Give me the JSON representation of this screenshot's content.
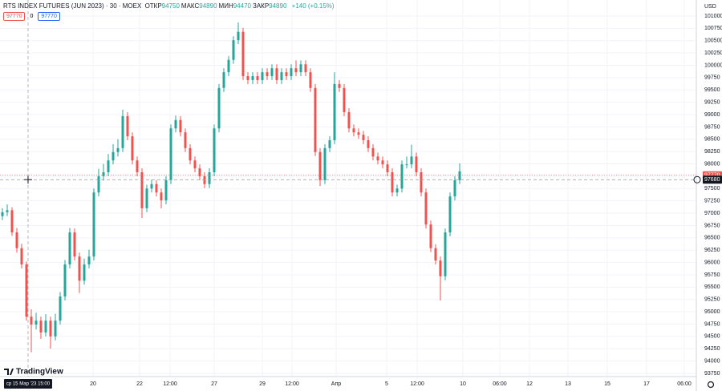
{
  "chart_data": {
    "type": "candlestick",
    "title": "RTS INDEX FUTURES (JUN 2023) · 30 · MOEX",
    "legend": [
      {
        "label": "ОТКР",
        "value": 94750
      },
      {
        "label": "МАКС",
        "value": 94890
      },
      {
        "label": "МИН",
        "value": 94470
      },
      {
        "label": "ЗАКР",
        "value": 94890
      }
    ],
    "change": "+140 (+0.15%)",
    "quote_boxes": [
      97770,
      0,
      97770
    ],
    "currency": "USD",
    "last_price": 97770,
    "crosshair": {
      "x": 5.83,
      "price": 97680,
      "label": "ср 15 Мар '23 15:00"
    },
    "brand": "TradingView",
    "up_color": "#26a69a",
    "down_color": "#ef5350",
    "grid": true,
    "ylim": [
      93685,
      101325
    ],
    "yticks": [
      101000,
      100750,
      100500,
      100250,
      100000,
      99750,
      99500,
      99250,
      99000,
      98750,
      98500,
      98250,
      98000,
      97750,
      97500,
      97250,
      97000,
      96750,
      96500,
      96250,
      96000,
      95750,
      95500,
      95250,
      95000,
      94750,
      94500,
      94250,
      94000,
      93750
    ],
    "xlim": [
      0,
      144.67
    ],
    "xticks": [
      {
        "value": 19.33,
        "label": "20"
      },
      {
        "value": 29,
        "label": "22"
      },
      {
        "value": 35.33,
        "label": "12:00"
      },
      {
        "value": 44.5,
        "label": "27"
      },
      {
        "value": 54.5,
        "label": "29"
      },
      {
        "value": 60.67,
        "label": "12:00"
      },
      {
        "value": 69.83,
        "label": "Апр"
      },
      {
        "value": 80.33,
        "label": "5"
      },
      {
        "value": 86.67,
        "label": "12:00"
      },
      {
        "value": 96.17,
        "label": "10"
      },
      {
        "value": 103.83,
        "label": "06:00"
      },
      {
        "value": 110,
        "label": "12"
      },
      {
        "value": 118,
        "label": "13"
      },
      {
        "value": 126.17,
        "label": "15"
      },
      {
        "value": 134.33,
        "label": "17"
      },
      {
        "value": 142.17,
        "label": "06:00"
      }
    ],
    "ohlc": [
      [
        96940,
        97100,
        96860,
        97020
      ],
      [
        97020,
        97180,
        96940,
        97060
      ],
      [
        97060,
        97120,
        96540,
        96610
      ],
      [
        96610,
        96700,
        96200,
        96290
      ],
      [
        96290,
        96380,
        95880,
        95960
      ],
      [
        95960,
        96020,
        94820,
        94900
      ],
      [
        94900,
        95050,
        94180,
        94740
      ],
      [
        94740,
        94980,
        94640,
        94820
      ],
      [
        94820,
        94900,
        94450,
        94580
      ],
      [
        94580,
        94950,
        94500,
        94820
      ],
      [
        94820,
        94900,
        94250,
        94500
      ],
      [
        94500,
        94960,
        94420,
        94820
      ],
      [
        94820,
        95400,
        94740,
        95310
      ],
      [
        95310,
        96050,
        95230,
        95960
      ],
      [
        95960,
        96700,
        95880,
        96610
      ],
      [
        96610,
        96690,
        96040,
        96120
      ],
      [
        96120,
        96200,
        95380,
        95630
      ],
      [
        95630,
        96080,
        95550,
        95960
      ],
      [
        95960,
        96260,
        95880,
        96120
      ],
      [
        96120,
        97500,
        96040,
        97420
      ],
      [
        97420,
        97900,
        97340,
        97750
      ],
      [
        97750,
        98000,
        97660,
        97830
      ],
      [
        97830,
        98200,
        97750,
        98070
      ],
      [
        98070,
        98400,
        97990,
        98240
      ],
      [
        98240,
        98500,
        98150,
        98320
      ],
      [
        98320,
        99100,
        98240,
        98970
      ],
      [
        98970,
        99050,
        98480,
        98560
      ],
      [
        98560,
        98640,
        97990,
        98070
      ],
      [
        98070,
        98150,
        97750,
        97830
      ],
      [
        97830,
        97910,
        96900,
        97100
      ],
      [
        97100,
        97580,
        97020,
        97500
      ],
      [
        97500,
        97680,
        97420,
        97590
      ],
      [
        97590,
        97670,
        97340,
        97420
      ],
      [
        97420,
        97500,
        97100,
        97260
      ],
      [
        97260,
        97750,
        97180,
        97670
      ],
      [
        97670,
        98800,
        97590,
        98720
      ],
      [
        98720,
        98980,
        98640,
        98890
      ],
      [
        98890,
        98970,
        98560,
        98640
      ],
      [
        98640,
        98720,
        98240,
        98320
      ],
      [
        98320,
        98400,
        97990,
        98070
      ],
      [
        98070,
        98150,
        97830,
        97910
      ],
      [
        97910,
        97990,
        97670,
        97750
      ],
      [
        97750,
        97830,
        97510,
        97590
      ],
      [
        97590,
        97910,
        97510,
        97830
      ],
      [
        97830,
        98800,
        97750,
        98720
      ],
      [
        98720,
        99620,
        98640,
        99540
      ],
      [
        99540,
        99940,
        99460,
        99860
      ],
      [
        99860,
        100190,
        99780,
        100110
      ],
      [
        100110,
        100590,
        100030,
        100510
      ],
      [
        100510,
        100870,
        100430,
        100680
      ],
      [
        100680,
        100760,
        99700,
        99780
      ],
      [
        99780,
        99860,
        99620,
        99700
      ],
      [
        99700,
        99860,
        99620,
        99780
      ],
      [
        99780,
        99860,
        99620,
        99700
      ],
      [
        99700,
        99940,
        99620,
        99860
      ],
      [
        99860,
        99940,
        99700,
        99780
      ],
      [
        99780,
        100020,
        99700,
        99940
      ],
      [
        99940,
        100020,
        99620,
        99700
      ],
      [
        99700,
        99940,
        99620,
        99860
      ],
      [
        99860,
        99940,
        99700,
        99780
      ],
      [
        99780,
        100020,
        99700,
        99940
      ],
      [
        99940,
        100100,
        99780,
        99860
      ],
      [
        99860,
        100100,
        99780,
        100020
      ],
      [
        100020,
        100100,
        99780,
        99860
      ],
      [
        99860,
        99940,
        99460,
        99540
      ],
      [
        99540,
        99620,
        98160,
        98240
      ],
      [
        98240,
        98320,
        97550,
        97670
      ],
      [
        97670,
        98400,
        97590,
        98320
      ],
      [
        98320,
        98560,
        98240,
        98480
      ],
      [
        98480,
        99860,
        98400,
        99620
      ],
      [
        99620,
        99700,
        99460,
        99540
      ],
      [
        99540,
        99620,
        98970,
        99050
      ],
      [
        99050,
        99130,
        98640,
        98720
      ],
      [
        98720,
        98800,
        98560,
        98640
      ],
      [
        98640,
        98720,
        98510,
        98590
      ],
      [
        98590,
        98670,
        98400,
        98480
      ],
      [
        98480,
        98560,
        98240,
        98320
      ],
      [
        98320,
        98400,
        98070,
        98150
      ],
      [
        98150,
        98230,
        97990,
        98070
      ],
      [
        98070,
        98150,
        97910,
        97990
      ],
      [
        97990,
        98070,
        97750,
        97830
      ],
      [
        97830,
        97910,
        97340,
        97420
      ],
      [
        97420,
        97580,
        97340,
        97500
      ],
      [
        97500,
        98070,
        97420,
        97990
      ],
      [
        97990,
        98150,
        97910,
        97990
      ],
      [
        97990,
        98390,
        97910,
        98150
      ],
      [
        98150,
        98230,
        97750,
        97830
      ],
      [
        97830,
        97910,
        97340,
        97420
      ],
      [
        97420,
        97500,
        96690,
        96770
      ],
      [
        96770,
        96850,
        96210,
        96290
      ],
      [
        96290,
        96370,
        95960,
        96040
      ],
      [
        96040,
        96120,
        95230,
        95720
      ],
      [
        95720,
        96690,
        95640,
        96610
      ],
      [
        96610,
        97420,
        96530,
        97340
      ],
      [
        97340,
        97750,
        97260,
        97670
      ],
      [
        97670,
        98010,
        97590,
        97850
      ]
    ]
  }
}
